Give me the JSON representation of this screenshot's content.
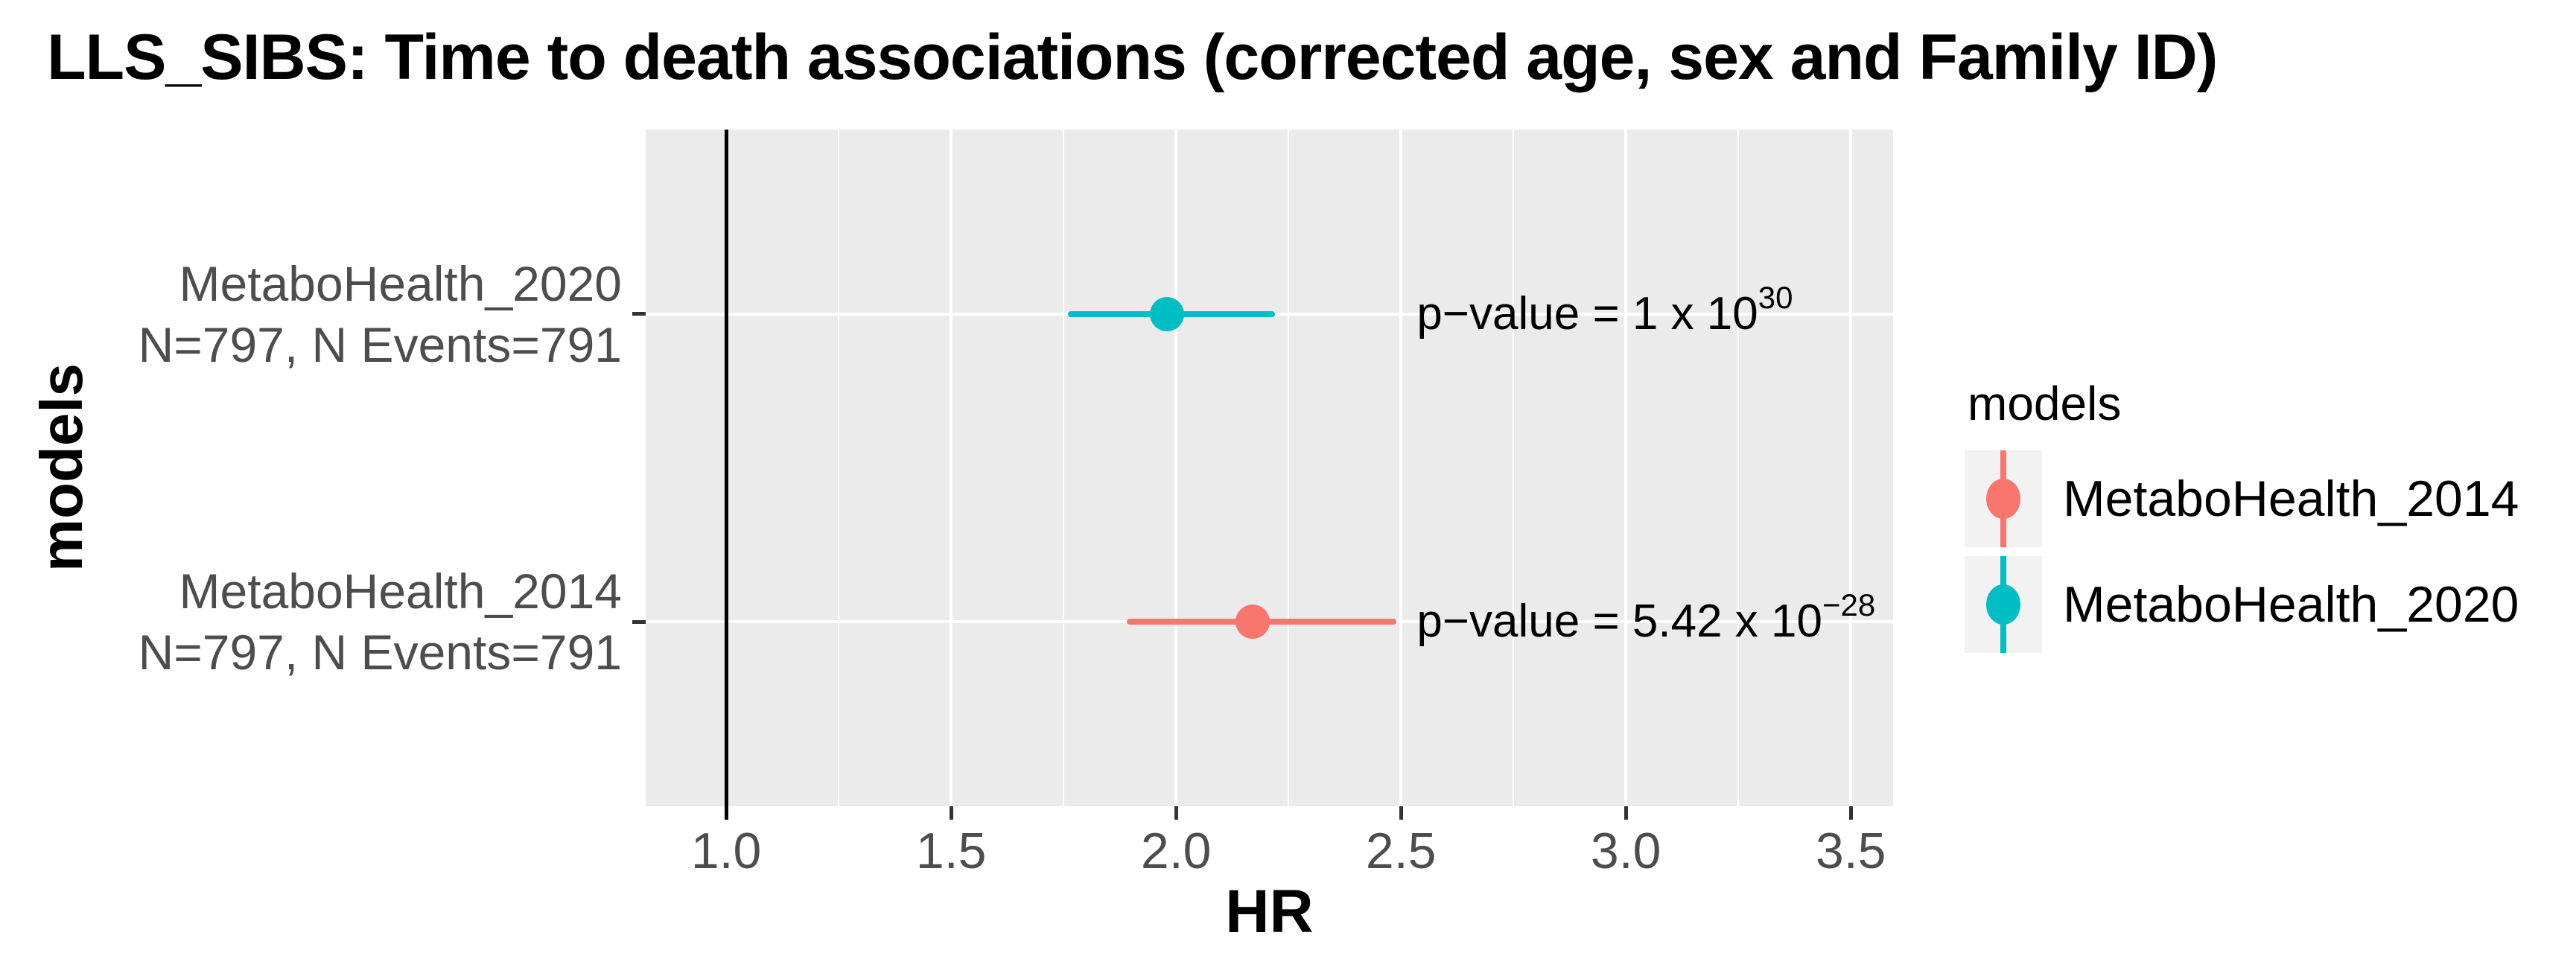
{
  "chart_data": {
    "type": "forest-pointrange",
    "title": "LLS_SIBS: Time to death associations (corrected age, sex and Family ID)",
    "xlabel": "HR",
    "ylabel": "models",
    "xlim": [
      0.821,
      3.594
    ],
    "x_major_ticks": [
      1.0,
      1.5,
      2.0,
      2.5,
      3.0,
      3.5
    ],
    "grid": true,
    "reference_line_x": 1.0,
    "rows": [
      {
        "model": "MetaboHealth_2020",
        "sample_label": "N=797, N Events=791",
        "color": "#00BFC4",
        "hr": 1.98,
        "ci_low": 1.76,
        "ci_high": 2.22,
        "p_value_prefix": "p−value = 1 x 10",
        "p_value_exponent": "30",
        "annotation_x": 2.535
      },
      {
        "model": "MetaboHealth_2014",
        "sample_label": "N=797, N Events=791",
        "color": "#F8766D",
        "hr": 2.17,
        "ci_low": 1.89,
        "ci_high": 2.49,
        "p_value_prefix": "p−value = 5.42 x 10",
        "p_value_exponent": "−28",
        "annotation_x": 2.535
      }
    ],
    "legend": {
      "title": "models",
      "position": "right",
      "entries": [
        {
          "label": "MetaboHealth_2014",
          "color": "#F8766D"
        },
        {
          "label": "MetaboHealth_2020",
          "color": "#00BFC4"
        }
      ]
    },
    "colors": {
      "panel_background": "#EBEBEB",
      "gridline": "#FFFFFF",
      "axis_text": "#4D4D4D",
      "tick_mark": "#333333",
      "reference_line": "#000000",
      "legend_key_background": "#F2F2F2"
    }
  }
}
